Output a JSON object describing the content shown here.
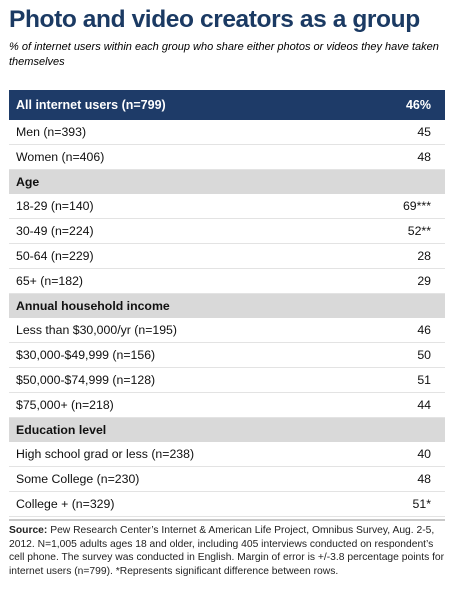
{
  "title": "Photo and video creators as a group",
  "subtitle": "% of internet users within each group who share either photos or videos they have taken themselves",
  "chart_data": {
    "type": "table",
    "rows": [
      {
        "kind": "header",
        "label": "All internet users (n=799)",
        "value": "46%"
      },
      {
        "kind": "data",
        "label": "Men (n=393)",
        "value": "45"
      },
      {
        "kind": "data",
        "label": "Women (n=406)",
        "value": "48"
      },
      {
        "kind": "section",
        "label": "Age"
      },
      {
        "kind": "data",
        "label": "18-29 (n=140)",
        "value": "69***"
      },
      {
        "kind": "data",
        "label": "30-49 (n=224)",
        "value": "52**"
      },
      {
        "kind": "data",
        "label": "50-64 (n=229)",
        "value": "28"
      },
      {
        "kind": "data",
        "label": "65+ (n=182)",
        "value": "29"
      },
      {
        "kind": "section",
        "label": "Annual household income"
      },
      {
        "kind": "data",
        "label": "Less than $30,000/yr (n=195)",
        "value": "46"
      },
      {
        "kind": "data",
        "label": "$30,000-$49,999 (n=156)",
        "value": "50"
      },
      {
        "kind": "data",
        "label": "$50,000-$74,999 (n=128)",
        "value": "51"
      },
      {
        "kind": "data",
        "label": "$75,000+ (n=218)",
        "value": "44"
      },
      {
        "kind": "section",
        "label": "Education level"
      },
      {
        "kind": "data",
        "label": "High school grad or less (n=238)",
        "value": "40"
      },
      {
        "kind": "data",
        "label": "Some College (n=230)",
        "value": "48"
      },
      {
        "kind": "data",
        "label": "College + (n=329)",
        "value": "51*"
      }
    ]
  },
  "source": {
    "label": "Source:",
    "text": " Pew Research Center’s Internet & American Life Project, Omnibus Survey, Aug. 2-5, 2012. N=1,005 adults ages 18 and older, including 405 interviews conducted on respondent’s cell phone. The survey was conducted in English. Margin of error is +/-3.8 percentage points for internet users (n=799). *Represents significant difference between rows."
  },
  "colors": {
    "title": "#1b3a63",
    "header_bg": "#1e3b68",
    "section_bg": "#d9d9d9",
    "divider": "#e3e3e3"
  }
}
